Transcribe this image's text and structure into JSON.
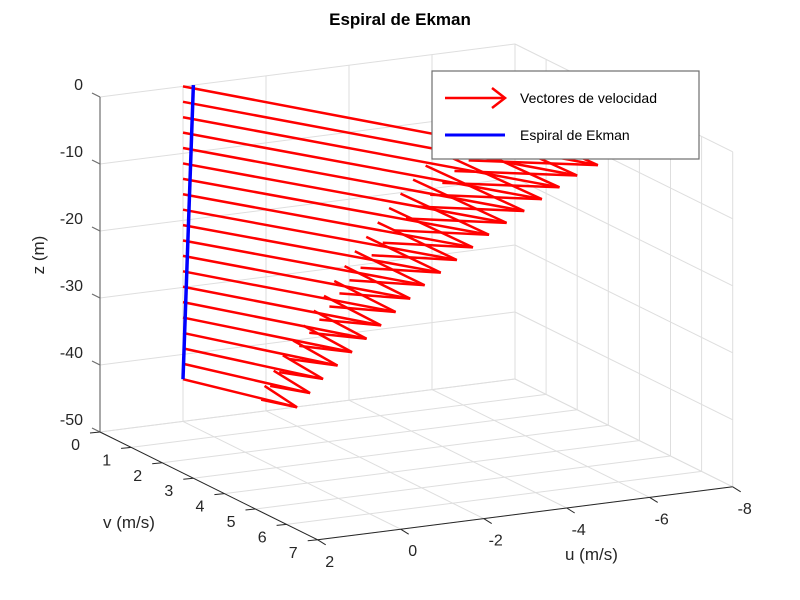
{
  "chart_data": {
    "type": "quiver3d",
    "title": "Espiral de Ekman",
    "xlabel": "u (m/s)",
    "ylabel": "v (m/s)",
    "zlabel": "z (m)",
    "xlim": [
      -8,
      2
    ],
    "ylim": [
      0,
      7
    ],
    "zlim": [
      -50,
      0
    ],
    "xticks": [
      2,
      0,
      -2,
      -4,
      -6,
      -8
    ],
    "yticks": [
      0,
      1,
      2,
      3,
      4,
      5,
      6,
      7
    ],
    "zticks": [
      0,
      -10,
      -20,
      -30,
      -40,
      -50
    ],
    "grid": true,
    "legend_position": "northeast",
    "legend": [
      {
        "label": "Vectores de velocidad",
        "color": "#ff0000",
        "style": "arrow"
      },
      {
        "label": "Espiral de Ekman",
        "color": "#0000ff",
        "style": "line"
      }
    ],
    "series": [
      {
        "name": "Vectores de velocidad",
        "color": "#ff0000",
        "z": [
          0,
          -2.3,
          -4.6,
          -6.9,
          -9.2,
          -11.5,
          -13.8,
          -16.1,
          -18.4,
          -20.7,
          -23.0,
          -25.3,
          -27.6,
          -29.9,
          -32.2,
          -34.5,
          -36.8,
          -39.1,
          -41.4,
          -43.7
        ],
        "u": [
          -4.9,
          -4.7,
          -4.5,
          -4.3,
          -4.1,
          -3.9,
          -3.7,
          -3.5,
          -3.3,
          -3.1,
          -2.9,
          -2.7,
          -2.5,
          -2.3,
          -2.1,
          -1.9,
          -1.7,
          -1.5,
          -1.3,
          -1.1
        ],
        "v": [
          6.8,
          6.4,
          6.1,
          5.8,
          5.5,
          5.2,
          4.9,
          4.65,
          4.4,
          4.15,
          3.9,
          3.7,
          3.5,
          3.3,
          3.1,
          2.9,
          2.7,
          2.5,
          2.35,
          2.2
        ]
      },
      {
        "name": "Espiral de Ekman",
        "color": "#0000ff",
        "z": [
          0,
          -43.7
        ],
        "u": [
          -0.25,
          0.0
        ],
        "v": [
          0.0,
          0.0
        ]
      }
    ]
  },
  "axes": {
    "title": "Espiral de Ekman",
    "xlabel": "u (m/s)",
    "ylabel": "v (m/s)",
    "zlabel": "z (m)"
  },
  "legend": {
    "items": [
      {
        "label": "Vectores de velocidad"
      },
      {
        "label": "Espiral de Ekman"
      }
    ]
  }
}
